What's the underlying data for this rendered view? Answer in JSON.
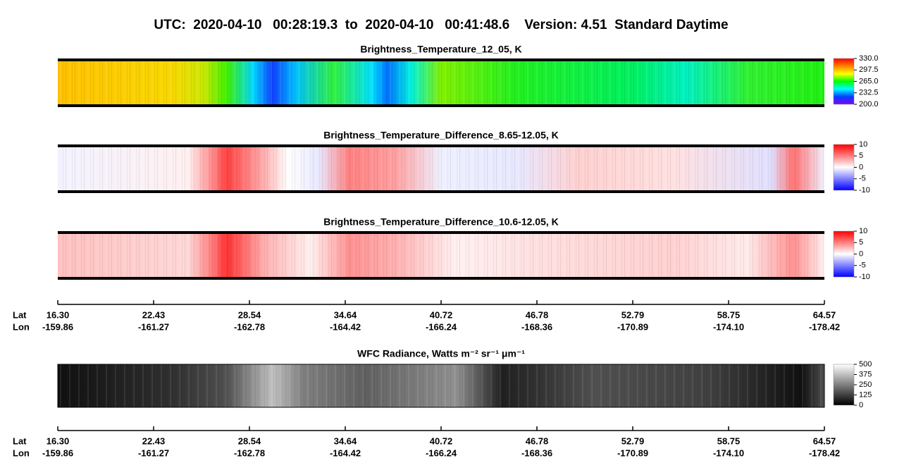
{
  "header": "UTC:  2020-04-10   00:28:19.3  to  2020-04-10   00:41:48.6    Version: 4.51  Standard Daytime",
  "chart_data": [
    {
      "type": "heatmap",
      "title": "Brightness_Temperature_12_05, K",
      "colors": [
        "#8000ff",
        "#0040ff",
        "#00ffff",
        "#00ff00",
        "#ffff00",
        "#ff8000",
        "#ff0000"
      ],
      "clim": [
        200,
        330
      ],
      "cticks": [
        {
          "value": 330,
          "label": "330.0"
        },
        {
          "value": 297.5,
          "label": "297.5"
        },
        {
          "value": 265,
          "label": "265.0"
        },
        {
          "value": 232.5,
          "label": "232.5"
        },
        {
          "value": 200,
          "label": "200.0"
        }
      ]
    },
    {
      "type": "heatmap",
      "title": "Brightness_Temperature_Difference_8.65-12.05, K",
      "colors": [
        "#0000ff",
        "#ffffff",
        "#ff0000"
      ],
      "clim": [
        -10,
        10
      ],
      "cticks": [
        10,
        5,
        0,
        -5,
        -10
      ]
    },
    {
      "type": "heatmap",
      "title": "Brightness_Temperature_Difference_10.6-12.05, K",
      "colors": [
        "#0000ff",
        "#ffffff",
        "#ff0000"
      ],
      "clim": [
        -10,
        10
      ],
      "cticks": [
        10,
        5,
        0,
        -5,
        -10
      ]
    },
    {
      "type": "heatmap",
      "title": "WFC Radiance, Watts m⁻² sr⁻¹ μm⁻¹",
      "colors": [
        "#000000",
        "#ffffff"
      ],
      "clim": [
        0,
        500
      ],
      "cticks": [
        500,
        375,
        250,
        125,
        0
      ]
    }
  ],
  "axes": [
    {
      "row_labels": [
        "Lat",
        "Lon"
      ],
      "lat": [
        "16.30",
        "22.43",
        "28.54",
        "34.64",
        "40.72",
        "46.78",
        "52.79",
        "58.75",
        "64.57"
      ],
      "lon": [
        "-159.86",
        "-161.27",
        "-162.78",
        "-164.42",
        "-166.24",
        "-168.36",
        "-170.89",
        "-174.10",
        "-178.42"
      ]
    },
    {
      "row_labels": [
        "Lat",
        "Lon"
      ],
      "lat": [
        "16.30",
        "22.43",
        "28.54",
        "34.64",
        "40.72",
        "46.78",
        "52.79",
        "58.75",
        "64.57"
      ],
      "lon": [
        "-159.86",
        "-161.27",
        "-162.78",
        "-164.42",
        "-166.24",
        "-168.36",
        "-170.89",
        "-174.10",
        "-178.42"
      ]
    }
  ]
}
